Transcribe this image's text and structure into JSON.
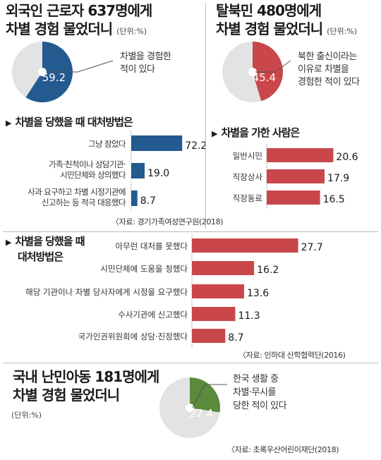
{
  "colors": {
    "blue": "#235a8f",
    "red": "#c9474a",
    "green": "#5a8a3c",
    "gray": "#e3e3e3"
  },
  "panel1": {
    "title_line1": "외국인 근로자 637명에게",
    "title_line2": "차별 경험 물었더니",
    "unit": "(단위:%)",
    "pie_value": "59.2",
    "pie_label_line1": "차별을 경험한",
    "pie_label_line2": "적이 있다"
  },
  "panel2": {
    "title_line1": "탈북민 480명에게",
    "title_line2": "차별 경험 물었더니",
    "unit": "(단위:%)",
    "pie_value": "45.4",
    "pie_label_line1": "북한 출신이라는",
    "pie_label_line2": "이유로 차별을",
    "pie_label_line3": "경험한 적이 있다"
  },
  "section_a": {
    "heading": "차별을 당했을 때 대처방법은",
    "source": "〈자료: 경기가족여성연구원(2018)"
  },
  "section_b": {
    "heading": "차별을 가한 사람은"
  },
  "section_c": {
    "heading_line1": "차별을 당했을 때",
    "heading_line2": "대처방법은",
    "source": "〈자료: 인하대 산학협력단(2016)"
  },
  "panel4": {
    "title_line1": "국내 난민아동 181명에게",
    "title_line2": "차별 경험 물었더니",
    "unit": "(단위:%)",
    "pie_value": "27.4",
    "pie_label_line1": "한국 생활 중",
    "pie_label_line2": "차별·무시를",
    "pie_label_line3": "당한 적이 있다",
    "source": "〈자료: 초록우산어린이재단(2018)"
  },
  "chart_data": [
    {
      "type": "pie",
      "title": "외국인 근로자 637명에게 차별 경험 물었더니",
      "unit": "%",
      "values": [
        59.2,
        40.8
      ],
      "categories": [
        "차별을 경험한 적이 있다",
        ""
      ]
    },
    {
      "type": "bar",
      "title": "차별을 당했을 때 대처방법은",
      "categories": [
        "그냥 참았다",
        "가족·친척이나 상담기관·시민단체와 상의했다",
        "사과 요구하고 차별 시정기관에 신고하는 등 적극 대응했다"
      ],
      "values": [
        72.2,
        19.0,
        8.7
      ],
      "value_labels": [
        "72.2",
        "19.0",
        "8.7"
      ],
      "xlim": [
        0,
        80
      ]
    },
    {
      "type": "pie",
      "title": "탈북민 480명에게 차별 경험 물었더니",
      "unit": "%",
      "values": [
        45.4,
        54.6
      ],
      "categories": [
        "북한 출신이라는 이유로 차별을 경험한 적이 있다",
        ""
      ]
    },
    {
      "type": "bar",
      "title": "차별을 가한 사람은",
      "categories": [
        "일반시민",
        "직장상사",
        "직장동료"
      ],
      "values": [
        20.6,
        17.9,
        16.5
      ],
      "value_labels": [
        "20.6",
        "17.9",
        "16.5"
      ],
      "xlim": [
        0,
        24
      ]
    },
    {
      "type": "bar",
      "title": "차별을 당했을 때 대처방법은",
      "categories": [
        "아무런 대처를 못했다",
        "시민단체에 도움을 청했다",
        "해당 기관이나 차별 당사자에게 시정을 요구했다",
        "수사기관에 신고했다",
        "국가인권위원회에 상담·진정했다"
      ],
      "values": [
        27.7,
        16.2,
        13.6,
        11.3,
        8.7
      ],
      "value_labels": [
        "27.7",
        "16.2",
        "13.6",
        "11.3",
        "8.7"
      ],
      "xlim": [
        0,
        32
      ]
    },
    {
      "type": "pie",
      "title": "국내 난민아동 181명에게 차별 경험 물었더니",
      "unit": "%",
      "values": [
        27.4,
        72.6
      ],
      "categories": [
        "한국 생활 중 차별·무시를 당한 적이 있다",
        ""
      ]
    }
  ]
}
